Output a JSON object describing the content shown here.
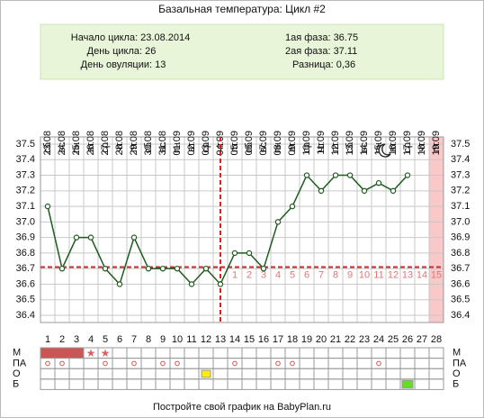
{
  "chart_data": {
    "type": "line",
    "title": "Базальная температура: Цикл #2",
    "info": {
      "cycle_start": "Начало цикла: 23.08.2014",
      "cycle_day": "День цикла: 26",
      "ovulation_day": "День овуляции: 13",
      "phase1": "1ая фаза: 36.75",
      "phase2": "2ая фаза: 37.11",
      "difference": "Разница: 0,36"
    },
    "categories": [
      1,
      2,
      3,
      4,
      5,
      6,
      7,
      8,
      9,
      10,
      11,
      12,
      13,
      14,
      15,
      16,
      17,
      18,
      19,
      20,
      21,
      22,
      23,
      24,
      25,
      26,
      27,
      28
    ],
    "dates": [
      "23.08",
      "24.08",
      "25.08",
      "26.08",
      "27.08",
      "28.08",
      "29.08",
      "30.08",
      "31.08",
      "01.09",
      "02.09",
      "03.09",
      "04.09",
      "05.09",
      "06.09",
      "07.09",
      "08.09",
      "09.09",
      "10.09",
      "11.09",
      "12.09",
      "13.09",
      "14.09",
      "15.09",
      "16.09",
      "17.09",
      "18.09",
      "19.09"
    ],
    "weekdays": [
      "сб",
      "вс",
      "пн",
      "вт",
      "ср",
      "чт",
      "пт",
      "сб",
      "вс",
      "пн",
      "вт",
      "ср",
      "чт",
      "пт",
      "сб",
      "вс",
      "пн",
      "вт",
      "ср",
      "чт",
      "пт",
      "сб",
      "вс",
      "пн",
      "вт",
      "ср",
      "чт",
      "пт"
    ],
    "series": [
      {
        "color": "#1d5c1d",
        "values": [
          37.1,
          36.7,
          36.9,
          36.9,
          36.7,
          36.6,
          36.9,
          36.7,
          36.7,
          36.7,
          36.6,
          36.7,
          36.6,
          36.8,
          36.8,
          36.7,
          37.0,
          37.1,
          37.3,
          37.2,
          37.3,
          37.3,
          37.2,
          37.25,
          37.2,
          37.3,
          null,
          null
        ]
      }
    ],
    "coverline": 36.71,
    "ovulation_day": 13,
    "post_ovulation_days": [
      1,
      2,
      3,
      4,
      5,
      6,
      7,
      8,
      9,
      10,
      11,
      12,
      13,
      14,
      15
    ],
    "ylim": [
      36.4,
      37.5
    ],
    "yticks": [
      36.4,
      36.5,
      36.6,
      36.7,
      36.8,
      36.9,
      {
        "value": 37,
        "label": "37.0"
      },
      37.1,
      37.2,
      37.3,
      37.4,
      37.5
    ],
    "grid": true,
    "row_labels": [
      "М",
      "ПА",
      "О",
      "Б"
    ],
    "footer": "Постройте свой график на BabyPlan.ru"
  }
}
